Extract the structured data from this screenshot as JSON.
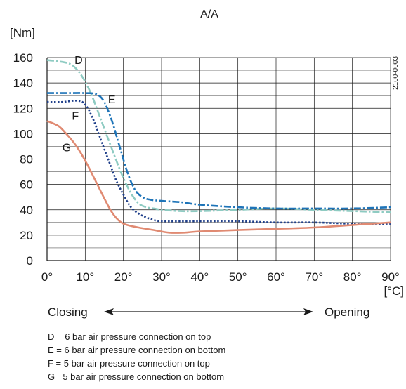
{
  "chart_data": {
    "type": "line",
    "title": "A/A",
    "ylabel": "[Nm]",
    "xlabel": "[°C]",
    "side_code": "2100-0003",
    "xlim": [
      0,
      90
    ],
    "ylim": [
      0,
      160
    ],
    "x_ticks": [
      0,
      10,
      20,
      30,
      40,
      50,
      60,
      70,
      80,
      90
    ],
    "x_tick_labels": [
      "0°",
      "10°",
      "20°",
      "30°",
      "40°",
      "50°",
      "60°",
      "70°",
      "80°",
      "90°"
    ],
    "y_ticks": [
      0,
      20,
      40,
      60,
      80,
      100,
      120,
      140,
      160
    ],
    "y_tick_labels": [
      "0",
      "20",
      "40",
      "60",
      "80",
      "100",
      "120",
      "140",
      "160"
    ],
    "grid": true,
    "series": [
      {
        "name": "D",
        "color": "#8ecbc2",
        "dash": "dashdot",
        "x": [
          0,
          3,
          6,
          8,
          10,
          12,
          14,
          16,
          18,
          20,
          22,
          24,
          26,
          28,
          30,
          35,
          40,
          50,
          60,
          70,
          80,
          90
        ],
        "y": [
          158,
          157,
          155,
          150,
          141,
          128,
          112,
          96,
          80,
          65,
          53,
          45,
          42,
          41,
          40,
          39,
          39,
          40,
          41,
          40,
          39,
          38
        ]
      },
      {
        "name": "E",
        "color": "#1e74b8",
        "dash": "dashdot",
        "x": [
          0,
          5,
          10,
          13,
          15,
          17,
          19,
          21,
          23,
          25,
          27,
          30,
          35,
          40,
          50,
          60,
          70,
          80,
          90
        ],
        "y": [
          132,
          132,
          132,
          131,
          125,
          110,
          90,
          70,
          56,
          50,
          48,
          47,
          46,
          44,
          42,
          41,
          41,
          41,
          42
        ]
      },
      {
        "name": "F",
        "color": "#1f3f8a",
        "dash": "dot",
        "x": [
          0,
          4,
          8,
          10,
          12,
          14,
          16,
          18,
          20,
          22,
          24,
          26,
          28,
          30,
          40,
          50,
          60,
          70,
          80,
          90
        ],
        "y": [
          125,
          125,
          126,
          123,
          112,
          96,
          80,
          64,
          52,
          42,
          37,
          34,
          32,
          31,
          31,
          31,
          30,
          30,
          29,
          29
        ]
      },
      {
        "name": "G",
        "color": "#e08a72",
        "dash": "solid",
        "x": [
          0,
          3,
          5,
          7,
          9,
          11,
          13,
          15,
          17,
          19,
          21,
          24,
          28,
          32,
          36,
          40,
          50,
          60,
          70,
          80,
          90
        ],
        "y": [
          110,
          106,
          100,
          93,
          84,
          73,
          61,
          49,
          38,
          31,
          28,
          26,
          24,
          22,
          22,
          23,
          24,
          25,
          26,
          28,
          30
        ]
      }
    ],
    "curve_labels": [
      {
        "text": "D",
        "x": 7.2,
        "y": 155
      },
      {
        "text": "E",
        "x": 16.0,
        "y": 124
      },
      {
        "text": "F",
        "x": 6.5,
        "y": 111
      },
      {
        "text": "G",
        "x": 4.0,
        "y": 86
      }
    ]
  },
  "direction": {
    "left_label": "Closing",
    "right_label": "Opening"
  },
  "legend_lines": [
    "D = 6 bar air pressure connection on top",
    "E = 6 bar air pressure connection on bottom",
    "F = 5 bar air pressure connection on top",
    "G= 5 bar air pressure connection on bottom"
  ]
}
